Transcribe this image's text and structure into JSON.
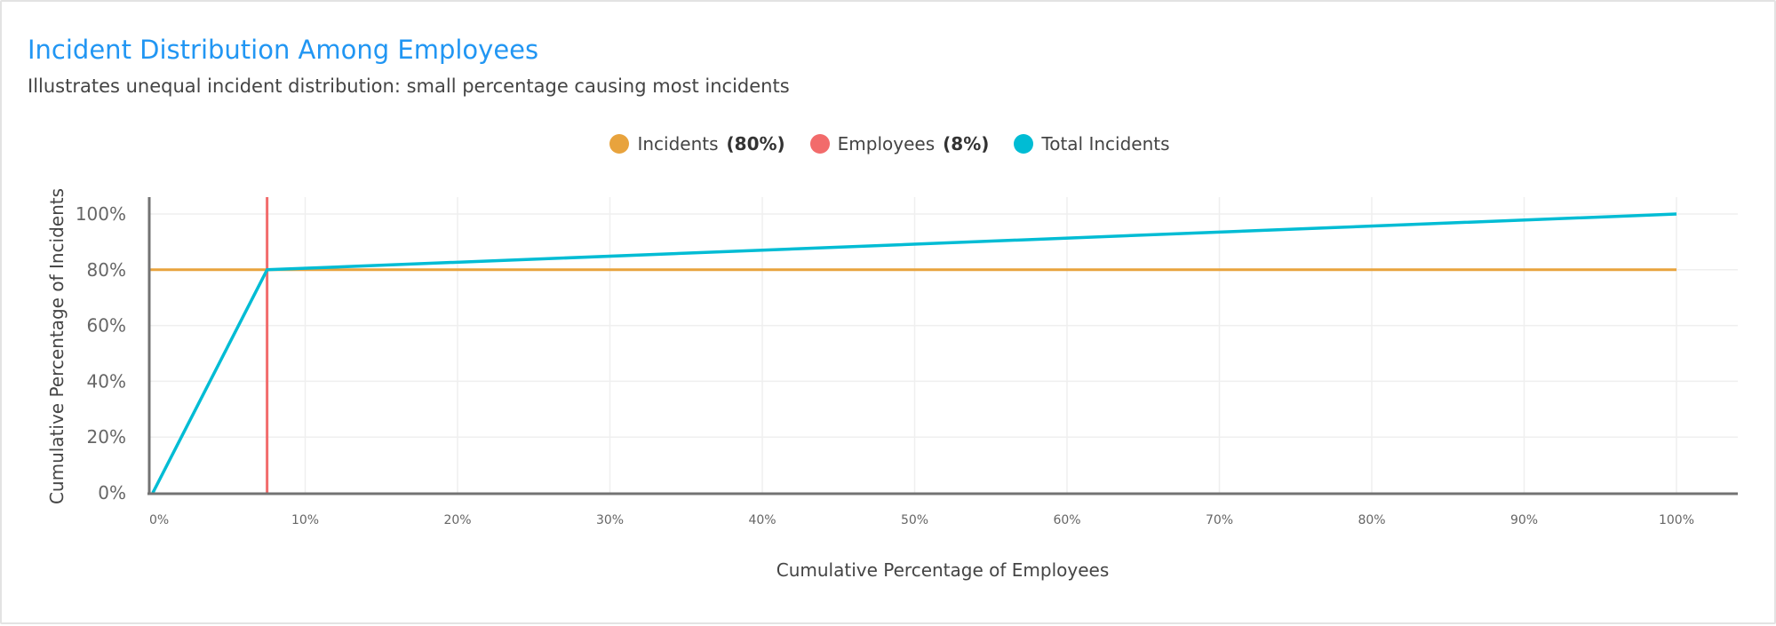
{
  "title": "Incident Distribution Among Employees",
  "subtitle": "Illustrates unequal incident distribution: small percentage causing most incidents",
  "legend": [
    {
      "label": "Incidents",
      "value": "(80%)",
      "color": "#e8a33d"
    },
    {
      "label": "Employees",
      "value": "(8%)",
      "color": "#f26b6b"
    },
    {
      "label": "Total Incidents",
      "value": "",
      "color": "#00bcd4"
    }
  ],
  "chart_data": {
    "type": "line",
    "xlabel": "Cumulative Percentage of Employees",
    "ylabel": "Cumulative Percentage of Incidents",
    "xlim": [
      0,
      100
    ],
    "ylim": [
      0,
      100
    ],
    "grid": true,
    "legend_position": "top-center",
    "x_ticks": [
      "0%",
      "10%",
      "20%",
      "30%",
      "40%",
      "50%",
      "60%",
      "70%",
      "80%",
      "90%",
      "100%"
    ],
    "y_ticks": [
      "0%",
      "20%",
      "40%",
      "60%",
      "80%",
      "100%"
    ],
    "series": [
      {
        "name": "Total Incidents",
        "color": "#00bcd4",
        "points": [
          [
            0,
            0
          ],
          [
            7.5,
            80
          ],
          [
            100,
            100
          ]
        ]
      }
    ],
    "reference_lines": [
      {
        "name": "Incidents (80%)",
        "orientation": "horizontal",
        "value": 80,
        "color": "#e8a33d"
      },
      {
        "name": "Employees (8%)",
        "orientation": "vertical",
        "value": 7.5,
        "color": "#f26b6b"
      }
    ]
  }
}
